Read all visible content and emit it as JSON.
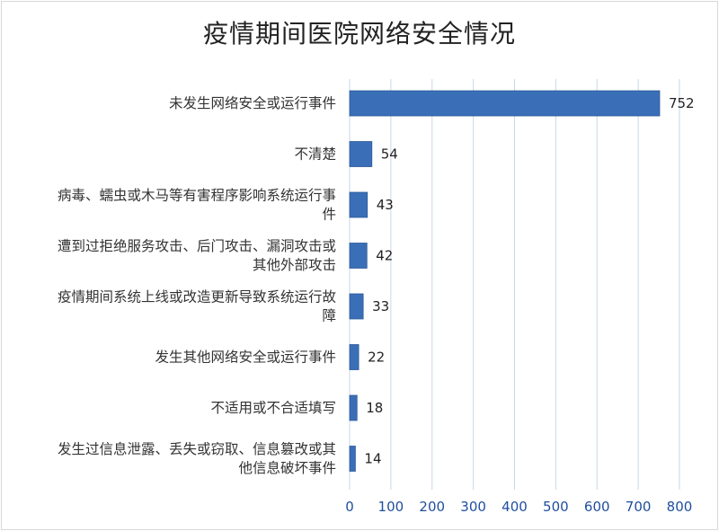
{
  "chart_data": {
    "type": "bar",
    "orientation": "horizontal",
    "title": "疫情期间医院网络安全情况",
    "categories": [
      "未发生网络安全或运行事件",
      "不清楚",
      "病毒、蠕虫或木马等有害程序影响系统运行事件",
      "遭到过拒绝服务攻击、后门攻击、漏洞攻击或其他外部攻击",
      "疫情期间系统上线或改造更新导致系统运行故障",
      "发生其他网络安全或运行事件",
      "不适用或不合适填写",
      "发生过信息泄露、丢失或窃取、信息篡改或其他信息破坏事件"
    ],
    "category_label_lines": [
      [
        "未发生网络安全或运行事件"
      ],
      [
        "不清楚"
      ],
      [
        "病毒、蠕虫或木马等有害程序影响系统运行事",
        "件"
      ],
      [
        "遭到过拒绝服务攻击、后门攻击、漏洞攻击或",
        "其他外部攻击"
      ],
      [
        "疫情期间系统上线或改造更新导致系统运行故",
        "障"
      ],
      [
        "发生其他网络安全或运行事件"
      ],
      [
        "不适用或不合适填写"
      ],
      [
        "发生过信息泄露、丢失或窃取、信息篡改或其",
        "他信息破坏事件"
      ]
    ],
    "values": [
      752,
      54,
      43,
      42,
      33,
      22,
      18,
      14
    ],
    "xlim": [
      0,
      800
    ],
    "xticks": [
      0,
      100,
      200,
      300,
      400,
      500,
      600,
      700,
      800
    ],
    "grid": "vertical",
    "xlabel": "",
    "ylabel": "",
    "colors": {
      "bar": "#3a6fb7",
      "bar_edge": "#2e5a98",
      "grid": "#c6d7ec",
      "tick_text": "#1f4e9e",
      "title_text": "#222222"
    }
  }
}
